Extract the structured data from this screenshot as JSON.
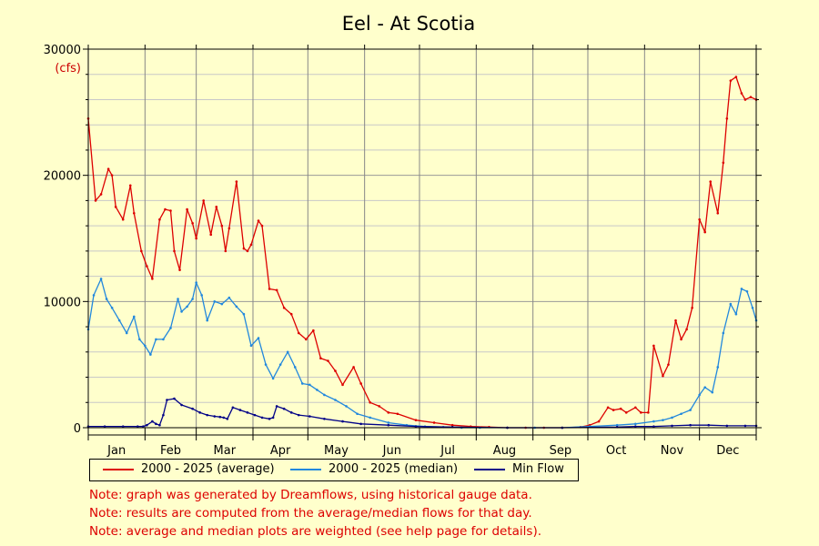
{
  "chart_data": {
    "type": "line",
    "title": "Eel - At Scotia",
    "unit_label": "(cfs)",
    "ylim": [
      0,
      30000
    ],
    "yticks": [
      0,
      10000,
      20000,
      30000
    ],
    "months": [
      "Jan",
      "Feb",
      "Mar",
      "Apr",
      "May",
      "Jun",
      "Jul",
      "Aug",
      "Sep",
      "Oct",
      "Nov",
      "Dec"
    ],
    "x_unit": "day_of_year",
    "xlim": [
      1,
      366
    ],
    "grid": true,
    "legend_position": "bottom",
    "series": [
      {
        "name": "2000 - 2025 (average)",
        "color": "#dd0000",
        "x": [
          1,
          5,
          8,
          12,
          14,
          16,
          20,
          24,
          26,
          30,
          33,
          36,
          40,
          43,
          46,
          48,
          51,
          55,
          58,
          60,
          64,
          68,
          71,
          74,
          76,
          78,
          82,
          86,
          88,
          90,
          94,
          96,
          100,
          104,
          108,
          112,
          116,
          120,
          124,
          128,
          132,
          136,
          140,
          146,
          150,
          155,
          160,
          165,
          170,
          180,
          190,
          200,
          210,
          220,
          230,
          240,
          250,
          260,
          270,
          275,
          280,
          285,
          288,
          292,
          295,
          300,
          303,
          307,
          310,
          315,
          318,
          322,
          325,
          328,
          331,
          335,
          338,
          341,
          345,
          348,
          350,
          352,
          355,
          358,
          360,
          363,
          366
        ],
        "y": [
          24500,
          18000,
          18500,
          20500,
          20000,
          17500,
          16500,
          19200,
          17000,
          14000,
          12800,
          11800,
          16500,
          17300,
          17200,
          14000,
          12500,
          17300,
          16200,
          15000,
          18000,
          15300,
          17500,
          16000,
          14000,
          15800,
          19500,
          14200,
          14000,
          14500,
          16400,
          16000,
          11000,
          10900,
          9500,
          9000,
          7500,
          7000,
          7700,
          5500,
          5300,
          4500,
          3400,
          4800,
          3500,
          2000,
          1700,
          1200,
          1100,
          600,
          400,
          200,
          100,
          50,
          0,
          0,
          0,
          0,
          50,
          200,
          500,
          1600,
          1400,
          1500,
          1200,
          1600,
          1200,
          1200,
          6500,
          4100,
          5000,
          8500,
          7000,
          7800,
          9500,
          16500,
          15500,
          19500,
          17000,
          21000,
          24500,
          27500,
          27800,
          26500,
          26000,
          26200,
          26000
        ],
        "values": [
          24500,
          18000,
          18500,
          20500,
          20000,
          17500,
          16500,
          19200,
          17000,
          14000,
          12800,
          11800,
          16500,
          17300,
          17200,
          14000,
          12500,
          17300,
          16200,
          15000,
          18000,
          15300,
          17500,
          16000,
          14000,
          15800,
          19500,
          14200,
          14000,
          14500,
          16400,
          16000,
          11000,
          10900,
          9500,
          9000,
          7500,
          7000,
          7700,
          5500,
          5300,
          4500,
          3400,
          4800,
          3500,
          2000,
          1700,
          1200,
          1100,
          600,
          400,
          200,
          100,
          50,
          0,
          0,
          0,
          0,
          50,
          200,
          500,
          1600,
          1400,
          1500,
          1200,
          1600,
          1200,
          1200,
          6500,
          4100,
          5000,
          8500,
          7000,
          7800,
          9500,
          16500,
          15500,
          19500,
          17000,
          21000,
          24500,
          27500,
          27800,
          26500,
          26000,
          26200,
          26000
        ]
      },
      {
        "name": "2000 - 2025 (median)",
        "color": "#2288dd",
        "x": [
          1,
          4,
          8,
          11,
          14,
          18,
          22,
          26,
          29,
          32,
          35,
          38,
          42,
          46,
          50,
          52,
          55,
          58,
          60,
          63,
          66,
          70,
          74,
          78,
          82,
          86,
          90,
          94,
          98,
          102,
          106,
          110,
          114,
          118,
          122,
          126,
          130,
          136,
          142,
          148,
          155,
          165,
          175,
          185,
          195,
          205,
          215,
          230,
          245,
          260,
          275,
          290,
          300,
          310,
          315,
          320,
          325,
          330,
          335,
          338,
          342,
          345,
          348,
          352,
          355,
          358,
          361,
          364,
          366
        ],
        "y": [
          7800,
          10500,
          11800,
          10200,
          9500,
          8500,
          7500,
          8800,
          7000,
          6500,
          5800,
          7000,
          7000,
          7900,
          10200,
          9200,
          9600,
          10200,
          11500,
          10500,
          8500,
          10000,
          9800,
          10300,
          9600,
          9000,
          6500,
          7100,
          5000,
          3900,
          5000,
          6000,
          4800,
          3500,
          3400,
          3000,
          2600,
          2200,
          1700,
          1100,
          800,
          400,
          200,
          100,
          50,
          0,
          0,
          0,
          0,
          0,
          100,
          200,
          300,
          500,
          600,
          800,
          1100,
          1400,
          2600,
          3200,
          2800,
          4800,
          7500,
          9800,
          9000,
          11000,
          10800,
          9500,
          8500
        ],
        "values": [
          7800,
          10500,
          11800,
          10200,
          9500,
          8500,
          7500,
          8800,
          7000,
          6500,
          5800,
          7000,
          7000,
          7900,
          10200,
          9200,
          9600,
          10200,
          11500,
          10500,
          8500,
          10000,
          9800,
          10300,
          9600,
          9000,
          6500,
          7100,
          5000,
          3900,
          5000,
          6000,
          4800,
          3500,
          3400,
          3000,
          2600,
          2200,
          1700,
          1100,
          800,
          400,
          200,
          100,
          50,
          0,
          0,
          0,
          0,
          0,
          100,
          200,
          300,
          500,
          600,
          800,
          1100,
          1400,
          2600,
          3200,
          2800,
          4800,
          7500,
          9800,
          9000,
          11000,
          10800,
          9500,
          8500
        ]
      },
      {
        "name": "Min Flow",
        "color": "#000088",
        "x": [
          1,
          10,
          20,
          28,
          31,
          33,
          36,
          38,
          40,
          42,
          44,
          48,
          52,
          58,
          62,
          66,
          70,
          73,
          75,
          77,
          80,
          84,
          88,
          92,
          96,
          100,
          102,
          104,
          108,
          112,
          116,
          122,
          130,
          140,
          150,
          165,
          180,
          200,
          230,
          260,
          290,
          300,
          310,
          320,
          330,
          340,
          350,
          360,
          366
        ],
        "y": [
          100,
          100,
          100,
          100,
          100,
          200,
          500,
          300,
          200,
          1000,
          2200,
          2300,
          1800,
          1500,
          1200,
          1000,
          900,
          850,
          800,
          700,
          1600,
          1400,
          1200,
          1000,
          800,
          700,
          800,
          1700,
          1500,
          1200,
          1000,
          900,
          700,
          500,
          300,
          200,
          100,
          50,
          0,
          0,
          50,
          100,
          100,
          150,
          200,
          200,
          150,
          150,
          150
        ],
        "values": [
          100,
          100,
          100,
          100,
          100,
          200,
          500,
          300,
          200,
          1000,
          2200,
          2300,
          1800,
          1500,
          1200,
          1000,
          900,
          850,
          800,
          700,
          1600,
          1400,
          1200,
          1000,
          800,
          700,
          800,
          1700,
          1500,
          1200,
          1000,
          900,
          700,
          500,
          300,
          200,
          100,
          50,
          0,
          0,
          50,
          100,
          100,
          150,
          200,
          200,
          150,
          150,
          150
        ]
      }
    ]
  },
  "notes": [
    "Note: graph was generated by Dreamflows, using historical gauge data.",
    "Note: results are computed from the average/median flows for that day.",
    "Note: average and median plots are weighted (see help page for details)."
  ]
}
